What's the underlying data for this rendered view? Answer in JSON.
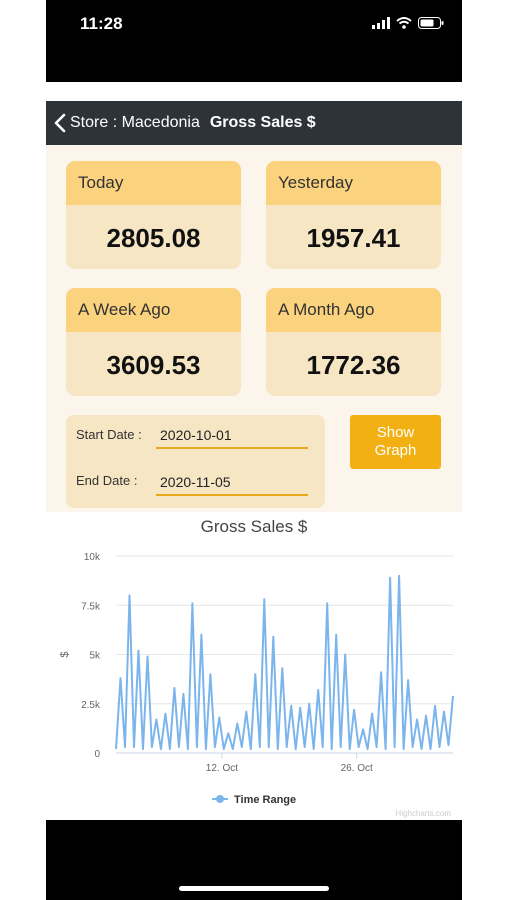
{
  "status_bar": {
    "time": "11:28"
  },
  "nav": {
    "back_label": "Store : Macedonia",
    "title": "Gross Sales $"
  },
  "cards": [
    {
      "label": "Today",
      "value": "2805.08"
    },
    {
      "label": "Yesterday",
      "value": "1957.41"
    },
    {
      "label": "A Week Ago",
      "value": "3609.53"
    },
    {
      "label": "A Month Ago",
      "value": "1772.36"
    }
  ],
  "dates": {
    "start_label": "Start Date :",
    "start_value": "2020-10-01",
    "end_label": "End Date :",
    "end_value": "2020-11-05"
  },
  "show_graph_label": "Show Graph",
  "colors": {
    "navbar": "#2e3339",
    "card_header": "#fbd37f",
    "card_body": "#f6e6c4",
    "button": "#f2b013",
    "series": "#7cb5ec"
  },
  "chart_data": {
    "type": "line",
    "title": "Gross Sales $",
    "xlabel": "",
    "ylabel": "$",
    "ylim": [
      0,
      10000
    ],
    "yticks": [
      "0",
      "2.5k",
      "5k",
      "7.5k",
      "10k"
    ],
    "xticks": [
      {
        "date": "2020-10-12",
        "label": "12. Oct"
      },
      {
        "date": "2020-10-26",
        "label": "26. Oct"
      }
    ],
    "x_start": "2020-10-01",
    "x_end": "2020-11-05",
    "grid": true,
    "legend": "bottom",
    "credit": "Highcharts.com",
    "series": [
      {
        "name": "Time Range",
        "values": [
          200,
          3800,
          300,
          8000,
          300,
          5200,
          200,
          4900,
          300,
          1700,
          200,
          2000,
          200,
          3300,
          300,
          3000,
          200,
          7600,
          300,
          6000,
          200,
          4000,
          300,
          1800,
          200,
          1000,
          200,
          1500,
          300,
          2100,
          200,
          4000,
          300,
          7800,
          300,
          5900,
          200,
          4300,
          300,
          2400,
          200,
          2300,
          300,
          2500,
          200,
          3200,
          300,
          7600,
          200,
          6000,
          300,
          5000,
          200,
          2200,
          300,
          1200,
          200,
          2000,
          300,
          4100,
          200,
          8900,
          300,
          9000,
          200,
          3700,
          300,
          1700,
          200,
          1900,
          200,
          2400,
          300,
          2100,
          400,
          2900
        ]
      }
    ]
  }
}
